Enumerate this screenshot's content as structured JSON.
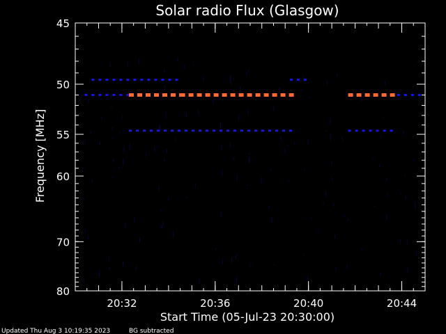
{
  "chart_data": {
    "type": "heatmap",
    "title": "Solar radio Flux (Glasgow)",
    "xlabel": "Start Time (05-Jul-23 20:30:00)",
    "ylabel": "Frequency [MHz]",
    "x_range_minutes": [
      0,
      15
    ],
    "y_range_mhz": [
      45,
      80
    ],
    "y_scale": "reciprocal",
    "x_ticks": [
      {
        "minute": 2,
        "label": "20:32"
      },
      {
        "minute": 6,
        "label": "20:36"
      },
      {
        "minute": 10,
        "label": "20:40"
      },
      {
        "minute": 14,
        "label": "20:44"
      }
    ],
    "y_ticks": [
      {
        "mhz": 45,
        "label": "45"
      },
      {
        "mhz": 50,
        "label": "50"
      },
      {
        "mhz": 55,
        "label": "55"
      },
      {
        "mhz": 60,
        "label": "60"
      },
      {
        "mhz": 70,
        "label": "70"
      },
      {
        "mhz": 80,
        "label": "80"
      }
    ],
    "features": [
      {
        "name": "strong-51mhz-a",
        "mhz": 51.0,
        "start_min": 2.3,
        "end_min": 4.5,
        "level": "high"
      },
      {
        "name": "strong-51mhz-b",
        "mhz": 51.0,
        "start_min": 4.5,
        "end_min": 9.4,
        "level": "high"
      },
      {
        "name": "strong-51mhz-c",
        "mhz": 51.0,
        "start_min": 11.7,
        "end_min": 13.8,
        "level": "high"
      },
      {
        "name": "weak-51mhz-left",
        "mhz": 51.0,
        "start_min": 0.4,
        "end_min": 2.3,
        "level": "low"
      },
      {
        "name": "weak-51mhz-right",
        "mhz": 51.0,
        "start_min": 13.8,
        "end_min": 14.9,
        "level": "low"
      },
      {
        "name": "weak-49.5mhz-a",
        "mhz": 49.6,
        "start_min": 0.7,
        "end_min": 4.5,
        "level": "low"
      },
      {
        "name": "weak-49.5mhz-b",
        "mhz": 49.6,
        "start_min": 9.2,
        "end_min": 10.0,
        "level": "low"
      },
      {
        "name": "weak-54.6mhz-a",
        "mhz": 54.6,
        "start_min": 2.3,
        "end_min": 9.4,
        "level": "low"
      },
      {
        "name": "weak-54.6mhz-b",
        "mhz": 54.6,
        "start_min": 11.7,
        "end_min": 13.8,
        "level": "low"
      }
    ],
    "colors": {
      "background": "#000000",
      "high": "#ff6a30",
      "low": "#1515e8",
      "axes": "#ffffff"
    }
  },
  "footer": {
    "updated": "Updated Thu Aug  3 10:19:35 2023",
    "note": "BG subtracted"
  }
}
